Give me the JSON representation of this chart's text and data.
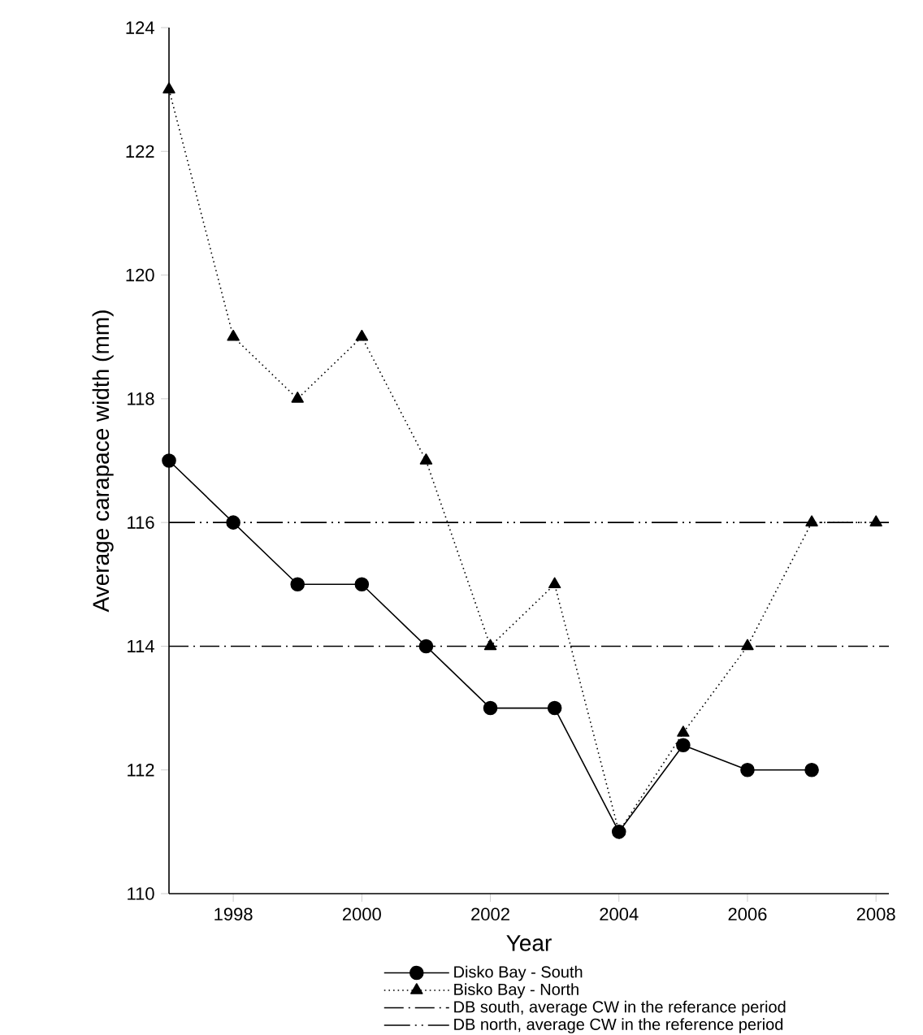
{
  "chart_data": {
    "type": "line",
    "xlabel": "Year",
    "ylabel": "Average carapace width (mm)",
    "xlim": [
      1997,
      2008.2
    ],
    "ylim": [
      110,
      124
    ],
    "xticks": [
      1998,
      2000,
      2002,
      2004,
      2006,
      2008
    ],
    "yticks": [
      110,
      112,
      114,
      116,
      118,
      120,
      122,
      124
    ],
    "legend": "bottom",
    "series": [
      {
        "name": "Disko Bay - South",
        "color": "#000000",
        "marker": "circle",
        "line_style": "solid",
        "x": [
          1997,
          1998,
          1999,
          2000,
          2001,
          2002,
          2003,
          2004,
          2005,
          2006,
          2007
        ],
        "values": [
          117,
          116,
          115,
          115,
          114,
          113,
          113,
          111,
          112.4,
          112,
          112
        ]
      },
      {
        "name": "Bisko Bay - North",
        "color": "#000000",
        "marker": "triangle",
        "line_style": "dotted",
        "x": [
          1997,
          1998,
          1999,
          2000,
          2001,
          2002,
          2003,
          2004,
          2005,
          2006,
          2007,
          2008
        ],
        "values": [
          123,
          119,
          118,
          119,
          117,
          114,
          115,
          111,
          112.6,
          114,
          116,
          116
        ]
      }
    ],
    "ref_lines": [
      {
        "axis": "y",
        "value": 114,
        "label": "DB south, average CW in the referance period",
        "color": "#000000",
        "line_style": "dashed"
      },
      {
        "axis": "y",
        "value": 116,
        "label": "DB north, average CW in the reference period",
        "color": "#000000",
        "line_style": "dashdotdot"
      }
    ]
  }
}
